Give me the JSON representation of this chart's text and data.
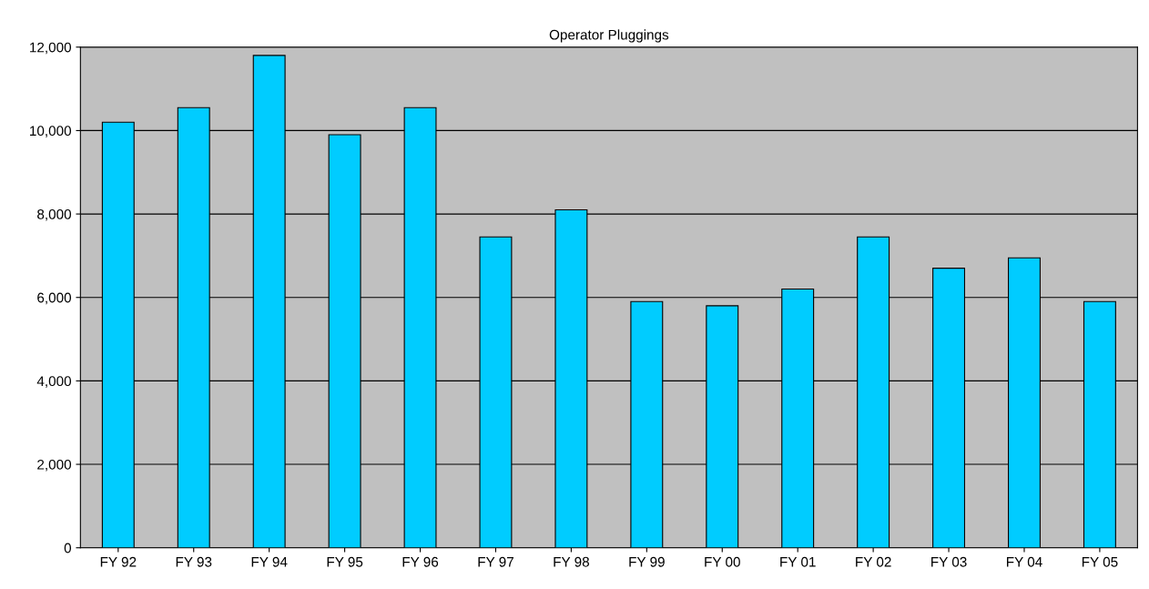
{
  "chart_data": {
    "type": "bar",
    "title": "Operator Pluggings",
    "categories": [
      "FY 92",
      "FY 93",
      "FY 94",
      "FY 95",
      "FY 96",
      "FY 97",
      "FY 98",
      "FY 99",
      "FY 00",
      "FY 01",
      "FY 02",
      "FY 03",
      "FY 04",
      "FY 05"
    ],
    "values": [
      10200,
      10550,
      11800,
      9900,
      10550,
      7450,
      8100,
      5900,
      5800,
      6200,
      7450,
      6700,
      6950,
      5900
    ],
    "color": "#00ccff",
    "ylim": [
      0,
      12000
    ],
    "yticks": [
      0,
      {
        "value": 2000,
        "label": "2,000"
      },
      {
        "value": 4000,
        "label": "4,000"
      },
      {
        "value": 6000,
        "label": "6,000"
      },
      {
        "value": 8000,
        "label": "8,000"
      },
      {
        "value": 10000,
        "label": "10,000"
      },
      {
        "value": 12000,
        "label": "12,000"
      }
    ],
    "grid": "y"
  }
}
